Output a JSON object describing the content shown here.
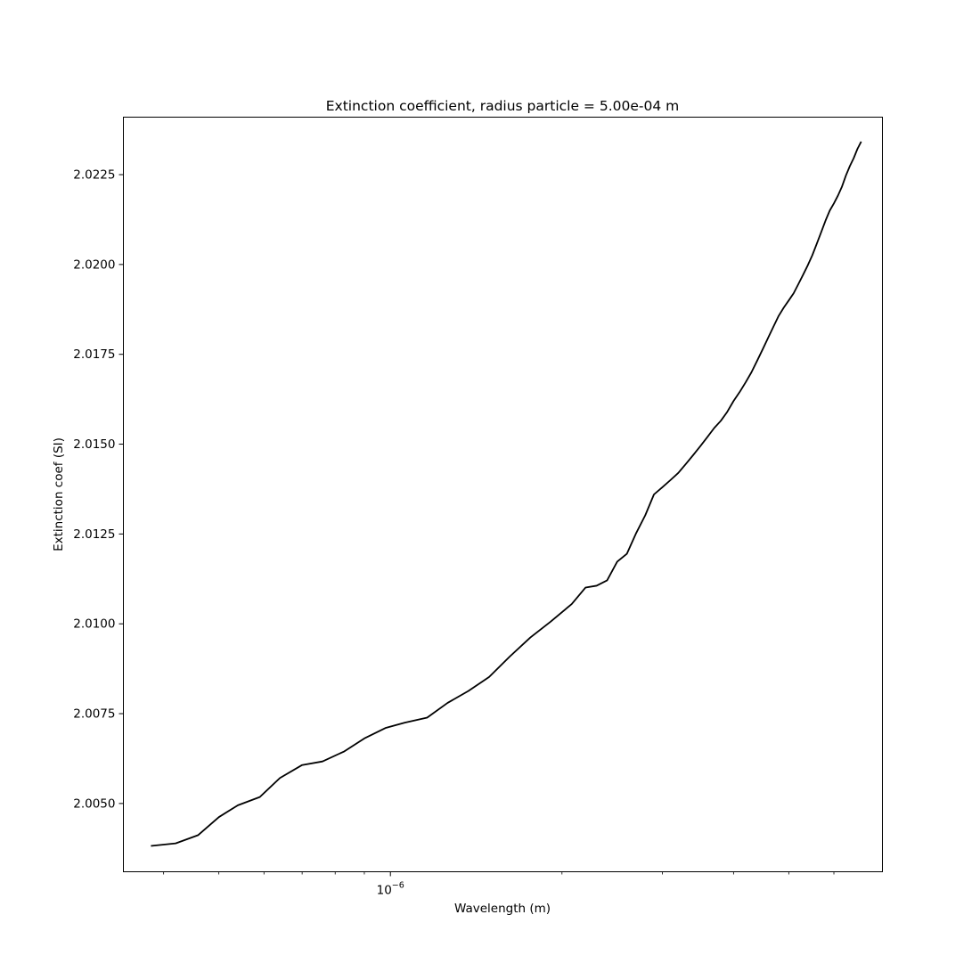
{
  "chart_data": {
    "type": "line",
    "title": "Extinction coefficient, radius particle = 5.00e-04 m",
    "xlabel": "Wavelength (m)",
    "ylabel": "Extinction coef (SI)",
    "xscale": "log",
    "xlim": [
      3.4e-07,
      7.3e-06
    ],
    "ylim": [
      2.0031,
      2.0241
    ],
    "x_major_tick_labels": [
      {
        "value": 1e-06,
        "base": "10",
        "exponent": "−6"
      }
    ],
    "x_minor_ticks": [
      4e-07,
      5e-07,
      6e-07,
      7e-07,
      8e-07,
      9e-07,
      2e-06,
      3e-06,
      4e-06,
      5e-06,
      6e-06
    ],
    "y_ticks": [
      2.005,
      2.0075,
      2.01,
      2.0125,
      2.015,
      2.0175,
      2.02,
      2.0225
    ],
    "y_tick_labels": [
      "2.0050",
      "2.0075",
      "2.0100",
      "2.0125",
      "2.0150",
      "2.0175",
      "2.0200",
      "2.0225"
    ],
    "grid": false,
    "series": [
      {
        "color": "#000000",
        "x": [
          3.8e-07,
          4.2e-07,
          4.6e-07,
          5e-07,
          5.4e-07,
          5.9e-07,
          6.4e-07,
          7e-07,
          7.6e-07,
          8.3e-07,
          9e-07,
          9.8e-07,
          1.06e-06,
          1.16e-06,
          1.26e-06,
          1.37e-06,
          1.49e-06,
          1.62e-06,
          1.76e-06,
          1.91e-06,
          2.08e-06,
          2.2e-06,
          2.3e-06,
          2.4e-06,
          2.5e-06,
          2.6e-06,
          2.7e-06,
          2.8e-06,
          2.9e-06,
          3e-06,
          3.1e-06,
          3.2e-06,
          3.3e-06,
          3.4e-06,
          3.5e-06,
          3.6e-06,
          3.7e-06,
          3.8e-06,
          3.9e-06,
          4e-06,
          4.1e-06,
          4.2e-06,
          4.3e-06,
          4.4e-06,
          4.5e-06,
          4.6e-06,
          4.7e-06,
          4.8e-06,
          4.9e-06,
          5e-06,
          5.1e-06,
          5.2e-06,
          5.3e-06,
          5.4e-06,
          5.5e-06,
          5.6e-06,
          5.7e-06,
          5.8e-06,
          5.9e-06,
          6e-06,
          6.1e-06,
          6.2e-06,
          6.3e-06,
          6.4e-06,
          6.5e-06,
          6.6e-06,
          6.7e-06
        ],
        "y": [
          2.00382,
          2.00389,
          2.00412,
          2.00462,
          2.00495,
          2.00518,
          2.00571,
          2.00607,
          2.00617,
          2.00645,
          2.00681,
          2.0071,
          2.00725,
          2.00739,
          2.0078,
          2.00813,
          2.00852,
          2.00909,
          2.00962,
          2.01006,
          2.01055,
          2.01101,
          2.01106,
          2.01121,
          2.01173,
          2.01195,
          2.01253,
          2.01302,
          2.0136,
          2.0138,
          2.014,
          2.0142,
          2.01445,
          2.0147,
          2.01495,
          2.0152,
          2.01545,
          2.01565,
          2.0159,
          2.0162,
          2.01645,
          2.01672,
          2.017,
          2.01732,
          2.01764,
          2.01796,
          2.01827,
          2.01857,
          2.0188,
          2.019,
          2.0192,
          2.01946,
          2.01972,
          2.01998,
          2.02026,
          2.02058,
          2.0209,
          2.02122,
          2.0215,
          2.0217,
          2.02192,
          2.02217,
          2.02248,
          2.02274,
          2.02296,
          2.02322,
          2.02342
        ]
      }
    ]
  }
}
